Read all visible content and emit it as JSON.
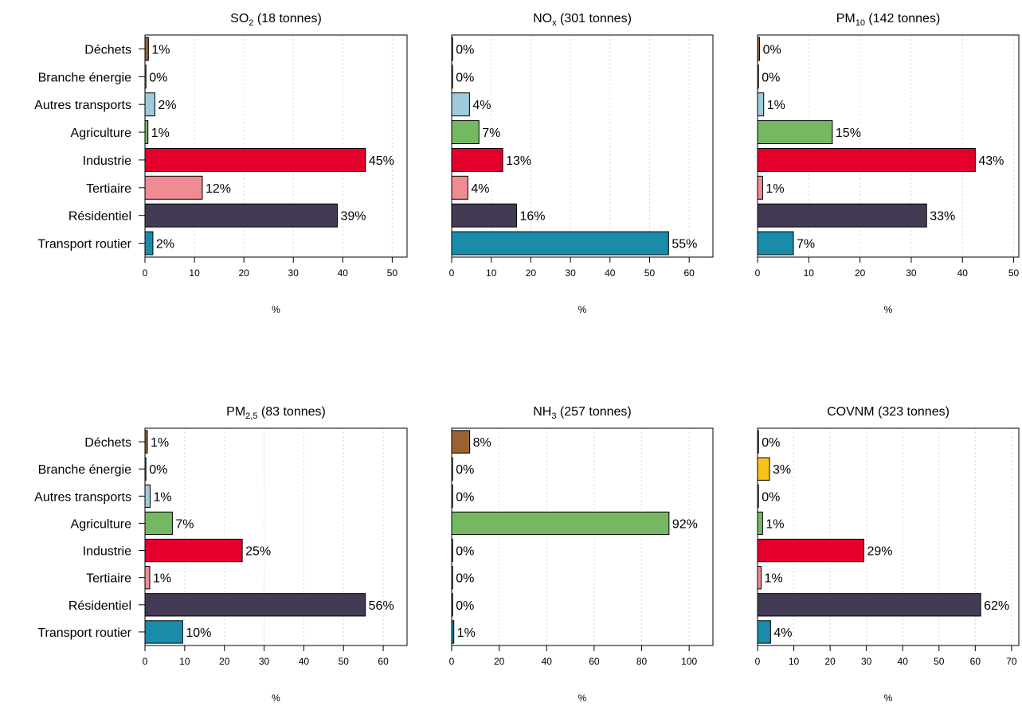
{
  "colors": {
    "Transport routier": "#1a8ba8",
    "Résidentiel": "#433a54",
    "Tertiaire": "#f08a93",
    "Industrie": "#e4002b",
    "Agriculture": "#76b862",
    "Autres transports": "#9ecadb",
    "Branche énergie": "#f7c31b",
    "Déchets": "#9a6232",
    "bar_stroke": "#000000",
    "grid": "#d9d9d9"
  },
  "chart_data": [
    {
      "type": "bar",
      "orientation": "horizontal",
      "title": {
        "main": "SO",
        "sub": "2",
        "rest": " (18 tonnes)"
      },
      "xlabel": "%",
      "categories": [
        "Transport routier",
        "Résidentiel",
        "Tertiaire",
        "Industrie",
        "Agriculture",
        "Autres transports",
        "Branche énergie",
        "Déchets"
      ],
      "values": [
        1.6,
        38.9,
        11.6,
        44.6,
        0.6,
        2.0,
        0.2,
        0.7
      ],
      "labels": [
        "2%",
        "39%",
        "12%",
        "45%",
        "1%",
        "2%",
        "0%",
        "1%"
      ],
      "xlim": [
        0,
        53
      ],
      "ticks": [
        0,
        10,
        20,
        30,
        40,
        50
      ],
      "grid": true
    },
    {
      "type": "bar",
      "orientation": "horizontal",
      "title": {
        "main": "NO",
        "sub": "x",
        "rest": " (301 tonnes)"
      },
      "xlabel": "%",
      "categories": [
        "Transport routier",
        "Résidentiel",
        "Tertiaire",
        "Industrie",
        "Agriculture",
        "Autres transports",
        "Branche énergie",
        "Déchets"
      ],
      "values": [
        54.8,
        16.4,
        4.1,
        12.9,
        6.9,
        4.5,
        0.2,
        0.2
      ],
      "labels": [
        "55%",
        "16%",
        "4%",
        "13%",
        "7%",
        "4%",
        "0%",
        "0%"
      ],
      "xlim": [
        0,
        66
      ],
      "ticks": [
        0,
        10,
        20,
        30,
        40,
        50,
        60
      ],
      "grid": true
    },
    {
      "type": "bar",
      "orientation": "horizontal",
      "title": {
        "main": "PM",
        "sub": "10",
        "rest": " (142 tonnes)"
      },
      "xlabel": "%",
      "categories": [
        "Transport routier",
        "Résidentiel",
        "Tertiaire",
        "Industrie",
        "Agriculture",
        "Autres transports",
        "Branche énergie",
        "Déchets"
      ],
      "values": [
        7.0,
        33.0,
        1.0,
        42.5,
        14.6,
        1.2,
        0.2,
        0.4
      ],
      "labels": [
        "7%",
        "33%",
        "1%",
        "43%",
        "15%",
        "1%",
        "0%",
        "0%"
      ],
      "xlim": [
        0,
        51
      ],
      "ticks": [
        0,
        10,
        20,
        30,
        40,
        50
      ],
      "grid": true
    },
    {
      "type": "bar",
      "orientation": "horizontal",
      "title": {
        "main": "PM",
        "sub": "2,5",
        "rest": " (83 tonnes)"
      },
      "xlabel": "%",
      "categories": [
        "Transport routier",
        "Résidentiel",
        "Tertiaire",
        "Industrie",
        "Agriculture",
        "Autres transports",
        "Branche énergie",
        "Déchets"
      ],
      "values": [
        9.5,
        55.5,
        1.2,
        24.5,
        6.9,
        1.3,
        0.2,
        0.6
      ],
      "labels": [
        "10%",
        "56%",
        "1%",
        "25%",
        "7%",
        "1%",
        "0%",
        "1%"
      ],
      "xlim": [
        0,
        66
      ],
      "ticks": [
        0,
        10,
        20,
        30,
        40,
        50,
        60
      ],
      "grid": true
    },
    {
      "type": "bar",
      "orientation": "horizontal",
      "title": {
        "main": "NH",
        "sub": "3",
        "rest": " (257 tonnes)"
      },
      "xlabel": "%",
      "categories": [
        "Transport routier",
        "Résidentiel",
        "Tertiaire",
        "Industrie",
        "Agriculture",
        "Autres transports",
        "Branche énergie",
        "Déchets"
      ],
      "values": [
        0.9,
        0.1,
        0.1,
        0.1,
        91.5,
        0.1,
        0.1,
        7.6
      ],
      "labels": [
        "1%",
        "0%",
        "0%",
        "0%",
        "92%",
        "0%",
        "0%",
        "8%"
      ],
      "xlim": [
        0,
        110
      ],
      "ticks": [
        0,
        20,
        40,
        60,
        80,
        100
      ],
      "grid": true
    },
    {
      "type": "bar",
      "orientation": "horizontal",
      "title": {
        "main": "COVNM (323 tonnes)",
        "sub": "",
        "rest": ""
      },
      "xlabel": "%",
      "categories": [
        "Transport routier",
        "Résidentiel",
        "Tertiaire",
        "Industrie",
        "Agriculture",
        "Autres transports",
        "Branche énergie",
        "Déchets"
      ],
      "values": [
        3.6,
        61.5,
        1.0,
        29.3,
        1.4,
        0.2,
        3.3,
        0.2
      ],
      "labels": [
        "4%",
        "62%",
        "1%",
        "29%",
        "1%",
        "0%",
        "3%",
        "0%"
      ],
      "xlim": [
        0,
        72
      ],
      "ticks": [
        0,
        10,
        20,
        30,
        40,
        50,
        60,
        70
      ],
      "grid": true
    }
  ]
}
